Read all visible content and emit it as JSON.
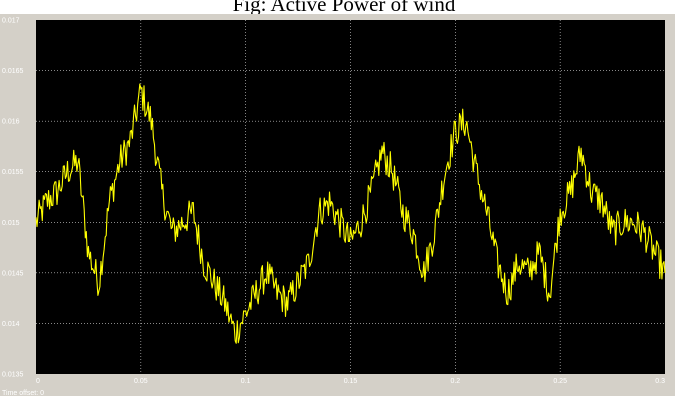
{
  "caption": "Fig: Active Power of wind",
  "time_offset_label": "Time offset:  0",
  "colors": {
    "plot_bg": "#000000",
    "frame": "#d4d0c8",
    "trace": "#ffff00",
    "grid": "#ffffff"
  },
  "chart_data": {
    "type": "line",
    "title": "Fig: Active Power of wind",
    "xlabel": "",
    "ylabel": "",
    "xlim": [
      0,
      0.3
    ],
    "ylim": [
      0.0135,
      0.017
    ],
    "x_ticks": [
      0,
      0.05,
      0.1,
      0.15,
      0.2,
      0.25,
      0.3
    ],
    "x_tick_labels": [
      "0",
      "0.05",
      "0.1",
      "0.15",
      "0.2",
      "0.25",
      "0.3"
    ],
    "y_ticks": [
      0.0135,
      0.014,
      0.0145,
      0.015,
      0.0155,
      0.016,
      0.0165,
      0.017
    ],
    "y_tick_labels": [
      "0.0135",
      "0.014",
      "0.0145",
      "0.015",
      "0.0155",
      "0.016",
      "0.0165",
      "0.017"
    ],
    "grid": true,
    "series": [
      {
        "color": "#ffff00",
        "x": [
          0,
          0.005,
          0.01,
          0.015,
          0.02,
          0.025,
          0.03,
          0.035,
          0.04,
          0.045,
          0.05,
          0.055,
          0.06,
          0.065,
          0.07,
          0.075,
          0.08,
          0.085,
          0.09,
          0.095,
          0.1,
          0.105,
          0.11,
          0.115,
          0.12,
          0.125,
          0.13,
          0.135,
          0.14,
          0.145,
          0.15,
          0.155,
          0.16,
          0.165,
          0.17,
          0.175,
          0.18,
          0.185,
          0.19,
          0.195,
          0.2,
          0.205,
          0.21,
          0.215,
          0.22,
          0.225,
          0.23,
          0.235,
          0.24,
          0.245,
          0.25,
          0.255,
          0.26,
          0.265,
          0.27,
          0.275,
          0.28,
          0.285,
          0.29,
          0.295,
          0.3
        ],
        "y": [
          0.015,
          0.0152,
          0.0153,
          0.0155,
          0.0156,
          0.0147,
          0.0144,
          0.0152,
          0.0156,
          0.0158,
          0.0163,
          0.016,
          0.0153,
          0.0149,
          0.015,
          0.0151,
          0.0146,
          0.0144,
          0.0142,
          0.0139,
          0.0141,
          0.0143,
          0.0145,
          0.0143,
          0.0142,
          0.0144,
          0.0146,
          0.0151,
          0.0152,
          0.015,
          0.0148,
          0.015,
          0.0153,
          0.0157,
          0.0155,
          0.0151,
          0.0149,
          0.0145,
          0.0149,
          0.0155,
          0.0159,
          0.016,
          0.0155,
          0.0151,
          0.0146,
          0.0143,
          0.0146,
          0.0145,
          0.0147,
          0.0143,
          0.0151,
          0.0153,
          0.0157,
          0.0153,
          0.0152,
          0.0149,
          0.015,
          0.015,
          0.0149,
          0.0147,
          0.0145
        ]
      }
    ]
  }
}
